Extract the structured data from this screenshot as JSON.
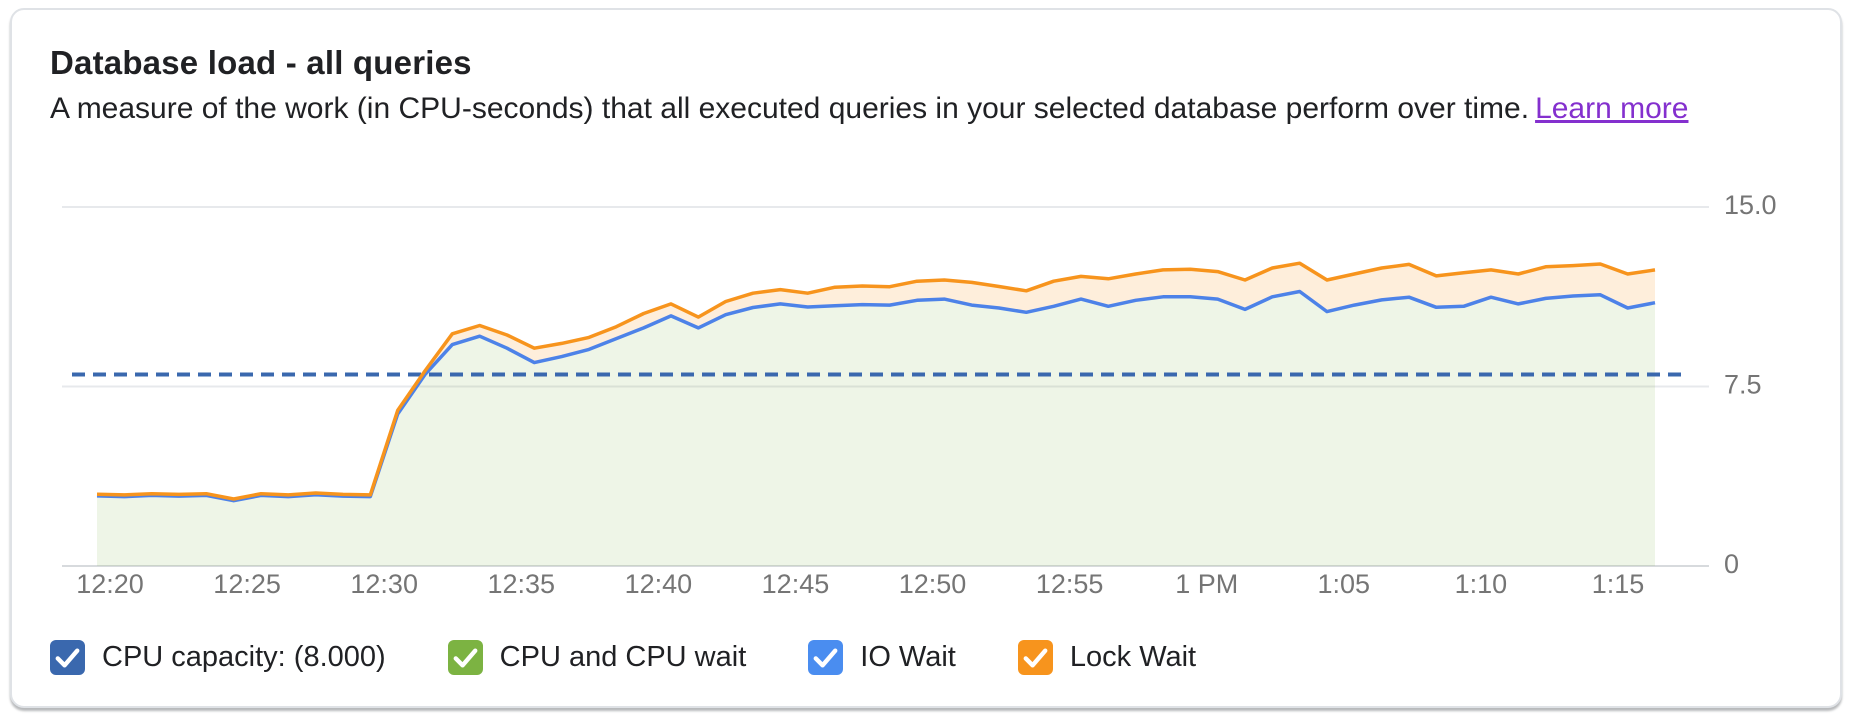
{
  "card": {
    "title": "Database load - all queries",
    "subtitle": "A measure of the work (in CPU-seconds) that all executed queries in your selected database perform over time.",
    "learn_more_label": "Learn more"
  },
  "chart_data": {
    "type": "area",
    "stacked": true,
    "title": "Database load - all queries",
    "ylabel": "CPU-seconds",
    "ylim": [
      0,
      15
    ],
    "grid": true,
    "y_ticks": [
      {
        "label": "15.0",
        "value": 15
      },
      {
        "label": "7.5",
        "value": 7.5
      },
      {
        "label": "0",
        "value": 0
      }
    ],
    "x_tick_labels": [
      "12:20",
      "12:25",
      "12:30",
      "12:35",
      "12:40",
      "12:45",
      "12:50",
      "12:55",
      "1 PM",
      "1:05",
      "1:10",
      "1:15"
    ],
    "x_axis": {
      "start_time": "12:19:30 PM",
      "end_time": "1:16:30 PM",
      "step_minutes": 1,
      "points": 58
    },
    "capacity_line": {
      "name": "CPU capacity",
      "value": 8.0,
      "style": "dashed",
      "color": "#3a68ae"
    },
    "series": [
      {
        "name": "CPU and CPU wait + IO Wait (cumulative top, blue line over green fill)",
        "line_color": "#4d82e8",
        "fill_color": "rgba(125,179,66,0.13)",
        "values": [
          2.93,
          2.9,
          2.95,
          2.92,
          2.95,
          2.73,
          2.95,
          2.9,
          2.98,
          2.92,
          2.9,
          6.35,
          8.0,
          9.25,
          9.6,
          9.1,
          8.5,
          8.75,
          9.05,
          9.5,
          9.95,
          10.45,
          9.95,
          10.5,
          10.8,
          10.95,
          10.82,
          10.87,
          10.92,
          10.9,
          11.1,
          11.15,
          10.9,
          10.78,
          10.6,
          10.85,
          11.15,
          10.85,
          11.1,
          11.25,
          11.25,
          11.15,
          10.72,
          11.25,
          11.47,
          10.63,
          10.9,
          11.12,
          11.23,
          10.81,
          10.85,
          11.23,
          10.95,
          11.18,
          11.28,
          11.33,
          10.78,
          11.0
        ]
      },
      {
        "name": "Total load incl. Lock Wait (cumulative top, orange line over peach fill)",
        "line_color": "#f7941d",
        "fill_color": "rgba(247,148,29,0.16)",
        "values": [
          3.0,
          2.97,
          3.02,
          2.99,
          3.02,
          2.8,
          3.02,
          2.97,
          3.05,
          2.99,
          2.97,
          6.5,
          8.15,
          9.7,
          10.05,
          9.65,
          9.1,
          9.3,
          9.55,
          10.0,
          10.55,
          10.95,
          10.4,
          11.05,
          11.4,
          11.55,
          11.4,
          11.65,
          11.7,
          11.67,
          11.9,
          11.95,
          11.85,
          11.68,
          11.5,
          11.9,
          12.1,
          12.0,
          12.2,
          12.37,
          12.4,
          12.3,
          11.95,
          12.45,
          12.65,
          11.95,
          12.2,
          12.45,
          12.6,
          12.12,
          12.25,
          12.37,
          12.2,
          12.5,
          12.55,
          12.62,
          12.2,
          12.37
        ]
      }
    ],
    "legend_position": "bottom"
  },
  "legend": {
    "items": [
      {
        "id": "cpu-capacity",
        "label": "CPU capacity: (8.000)",
        "color": "#3a68ae",
        "checked": true
      },
      {
        "id": "cpu-and-cpu-wait",
        "label": "CPU and CPU wait",
        "color": "#7cb342",
        "checked": true
      },
      {
        "id": "io-wait",
        "label": "IO Wait",
        "color": "#4a8df0",
        "checked": true
      },
      {
        "id": "lock-wait",
        "label": "Lock Wait",
        "color": "#f7941d",
        "checked": true
      }
    ]
  },
  "colors": {
    "grid_line": "#e7e9ec",
    "axis_line": "#d7dadd",
    "tick_label": "#757575",
    "title_text": "#202124",
    "link": "#8430ce",
    "card_border": "#dfe2e6"
  }
}
